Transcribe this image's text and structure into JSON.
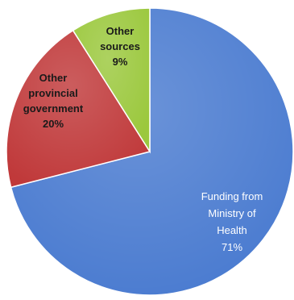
{
  "chart_data": {
    "type": "pie",
    "title": "",
    "slices": [
      {
        "label": "Funding from Ministry of Health",
        "label_lines": [
          "Funding from",
          "Ministry of",
          "Health"
        ],
        "value": 71,
        "value_text": "71%",
        "color": "#4a7bd0"
      },
      {
        "label": "Other provincial government",
        "label_lines": [
          "Other",
          "provincial",
          "government"
        ],
        "value": 20,
        "value_text": "20%",
        "color": "#c0393a"
      },
      {
        "label": "Other sources",
        "label_lines": [
          "Other",
          "sources"
        ],
        "value": 9,
        "value_text": "9%",
        "color": "#9bc83d"
      }
    ]
  }
}
